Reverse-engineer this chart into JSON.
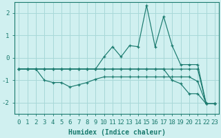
{
  "x": [
    0,
    1,
    2,
    3,
    4,
    5,
    6,
    7,
    8,
    9,
    10,
    11,
    12,
    13,
    14,
    15,
    16,
    17,
    18,
    19,
    20,
    21,
    22,
    23
  ],
  "line1": [
    -0.5,
    -0.5,
    -0.5,
    -0.5,
    -0.5,
    -0.5,
    -0.5,
    -0.5,
    -0.5,
    -0.5,
    0.05,
    0.5,
    0.05,
    0.55,
    0.5,
    2.35,
    0.5,
    1.85,
    0.55,
    -0.3,
    -0.3,
    -0.3,
    -2.05,
    -2.05
  ],
  "line2": [
    -0.5,
    -0.5,
    -0.5,
    -1.0,
    -1.1,
    -1.1,
    -1.3,
    -1.2,
    -1.1,
    -0.95,
    -0.85,
    -0.85,
    -0.85,
    -0.85,
    -0.85,
    -0.85,
    -0.85,
    -0.85,
    -0.85,
    -0.85,
    -0.85,
    -1.05,
    -2.05,
    -2.05
  ],
  "line3": [
    -0.5,
    -0.5,
    -0.5,
    -0.5,
    -0.5,
    -0.5,
    -0.5,
    -0.5,
    -0.5,
    -0.5,
    -0.5,
    -0.5,
    -0.5,
    -0.5,
    -0.5,
    -0.5,
    -0.5,
    -0.5,
    -0.5,
    -0.5,
    -0.5,
    -0.5,
    -2.05,
    -2.05
  ],
  "line4": [
    -0.5,
    -0.5,
    -0.5,
    -0.5,
    -0.5,
    -0.5,
    -0.5,
    -0.5,
    -0.5,
    -0.5,
    -0.5,
    -0.5,
    -0.5,
    -0.5,
    -0.5,
    -0.5,
    -0.5,
    -0.5,
    -1.0,
    -1.15,
    -1.6,
    -1.6,
    -2.05,
    -2.05
  ],
  "color": "#1a7a6e",
  "bg_color": "#d0f0f0",
  "grid_color": "#a8d8d8",
  "xlabel": "Humidex (Indice chaleur)",
  "ylim": [
    -2.5,
    2.5
  ],
  "xlim": [
    -0.5,
    23.5
  ],
  "yticks": [
    -2,
    -1,
    0,
    1,
    2
  ],
  "xticks": [
    0,
    1,
    2,
    3,
    4,
    5,
    6,
    7,
    8,
    9,
    10,
    11,
    12,
    13,
    14,
    15,
    16,
    17,
    18,
    19,
    20,
    21,
    22,
    23
  ],
  "xlabel_fontsize": 7,
  "tick_fontsize": 6.5,
  "linewidth": 0.85,
  "markersize": 3.5
}
